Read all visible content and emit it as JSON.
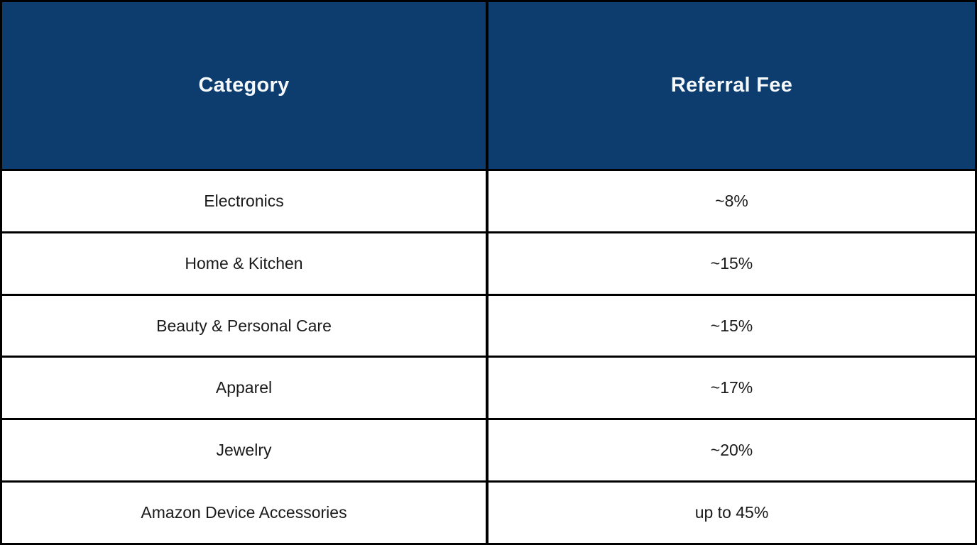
{
  "colors": {
    "header_bg": "#0d3d6e",
    "header_text": "#f5f9fc",
    "row_bg": "#ffffff",
    "row_text": "#1a1a1a",
    "border": "#000000"
  },
  "table": {
    "columns": [
      "Category",
      "Referral Fee"
    ],
    "rows": [
      {
        "category": "Electronics",
        "fee": "~8%"
      },
      {
        "category": "Home & Kitchen",
        "fee": "~15%"
      },
      {
        "category": "Beauty & Personal Care",
        "fee": "~15%"
      },
      {
        "category": "Apparel",
        "fee": "~17%"
      },
      {
        "category": "Jewelry",
        "fee": "~20%"
      },
      {
        "category": "Amazon Device Accessories",
        "fee": "up to 45%"
      }
    ]
  },
  "chart_data": {
    "type": "table",
    "title": "",
    "columns": [
      "Category",
      "Referral Fee"
    ],
    "rows": [
      [
        "Electronics",
        "~8%"
      ],
      [
        "Home & Kitchen",
        "~15%"
      ],
      [
        "Beauty & Personal Care",
        "~15%"
      ],
      [
        "Apparel",
        "~17%"
      ],
      [
        "Jewelry",
        "~20%"
      ],
      [
        "Amazon Device Accessories",
        "up to 45%"
      ]
    ],
    "values_numeric_pct": [
      8,
      15,
      15,
      17,
      20,
      45
    ]
  }
}
